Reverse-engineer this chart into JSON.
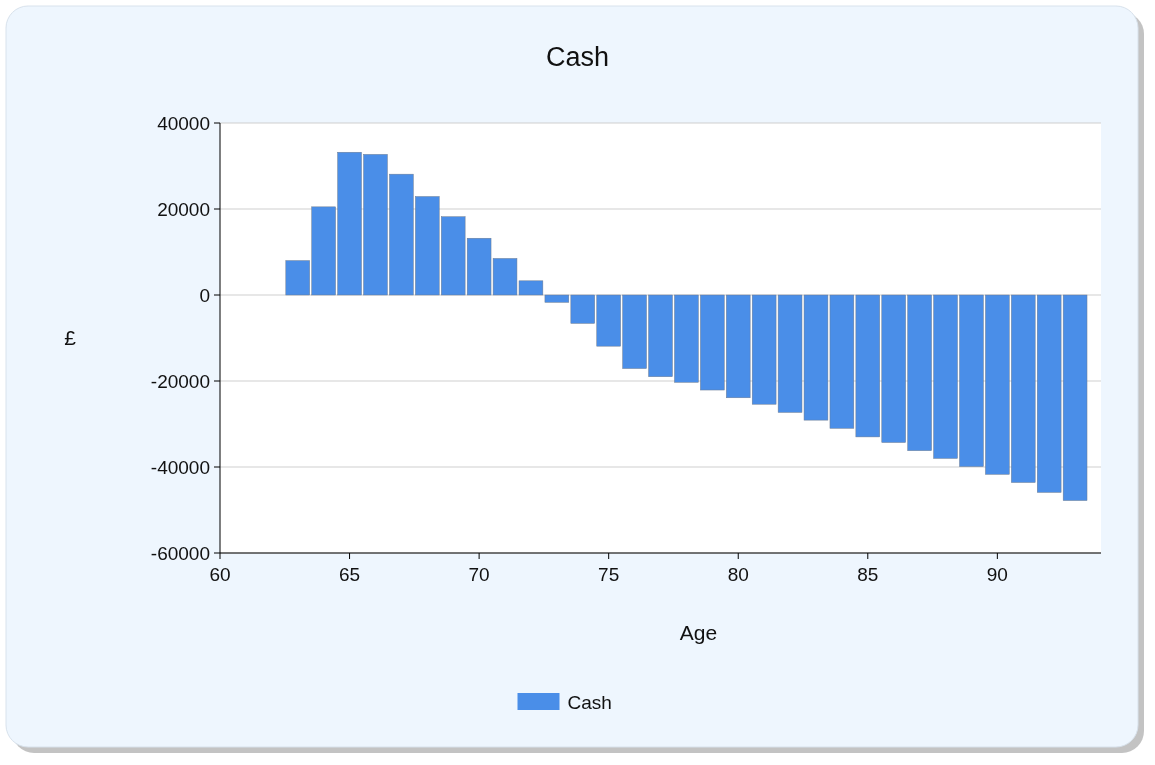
{
  "chart_data": {
    "type": "bar",
    "title": "Cash",
    "xlabel": "Age",
    "ylabel": "£",
    "x": [
      63,
      64,
      65,
      66,
      67,
      68,
      69,
      70,
      71,
      72,
      73,
      74,
      75,
      76,
      77,
      78,
      79,
      80,
      81,
      82,
      83,
      84,
      85,
      86,
      87,
      88,
      89,
      90,
      91,
      92,
      93
    ],
    "series": [
      {
        "name": "Cash",
        "color": "#4a8ee8",
        "values": [
          8000,
          20500,
          33200,
          32700,
          28100,
          22900,
          18200,
          13200,
          8500,
          3300,
          -1700,
          -6600,
          -11900,
          -17100,
          -19000,
          -20300,
          -22100,
          -23900,
          -25400,
          -27300,
          -29100,
          -31000,
          -33000,
          -34300,
          -36200,
          -38000,
          -39900,
          -41700,
          -43600,
          -45900,
          -47800
        ]
      }
    ],
    "xlim": [
      60,
      94
    ],
    "xticks": [
      60,
      65,
      70,
      75,
      80,
      85,
      90
    ],
    "ylim": [
      -60000,
      40000
    ],
    "yticks": [
      -60000,
      -40000,
      -20000,
      0,
      20000,
      40000
    ],
    "grid": "y",
    "legend": "bottom"
  }
}
